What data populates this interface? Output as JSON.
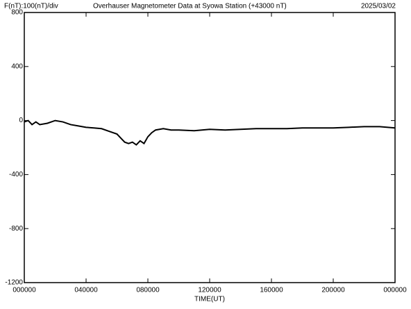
{
  "chart_data": {
    "type": "line",
    "scale_label": "F(nT):100(nT)/div",
    "title": "Overhauser Magnetometer Data at Syowa Station (+43000 nT)",
    "date": "2025/03/02",
    "x_label": "TIME(UT)",
    "x": [
      0,
      0.25,
      0.5,
      0.75,
      1,
      1.5,
      2,
      2.5,
      3,
      3.5,
      4,
      4.5,
      5,
      5.5,
      6,
      6.25,
      6.5,
      6.75,
      7,
      7.25,
      7.5,
      7.75,
      8,
      8.25,
      8.5,
      9,
      9.5,
      10,
      11,
      12,
      13,
      14,
      15,
      16,
      17,
      18,
      19,
      20,
      21,
      22,
      23,
      24
    ],
    "series": [
      {
        "color": "#000000",
        "values": [
          -10,
          0,
          -30,
          -10,
          -30,
          -20,
          0,
          -10,
          -30,
          -40,
          -50,
          -55,
          -60,
          -80,
          -100,
          -130,
          -160,
          -170,
          -160,
          -180,
          -150,
          -170,
          -120,
          -90,
          -70,
          -60,
          -70,
          -70,
          -75,
          -65,
          -70,
          -65,
          -60,
          -60,
          -60,
          -55,
          -55,
          -55,
          -50,
          -45,
          -45,
          -55
        ]
      }
    ],
    "xlim": [
      0,
      24
    ],
    "xticks": [
      {
        "value": 0,
        "label": "000000"
      },
      {
        "value": 4,
        "label": "040000"
      },
      {
        "value": 8,
        "label": "080000"
      },
      {
        "value": 12,
        "label": "120000"
      },
      {
        "value": 16,
        "label": "160000"
      },
      {
        "value": 20,
        "label": "200000"
      },
      {
        "value": 24,
        "label": "000000"
      }
    ],
    "ylim": [
      -1200,
      800
    ],
    "yticks": [
      -1200,
      -800,
      -400,
      0,
      400,
      800
    ]
  }
}
